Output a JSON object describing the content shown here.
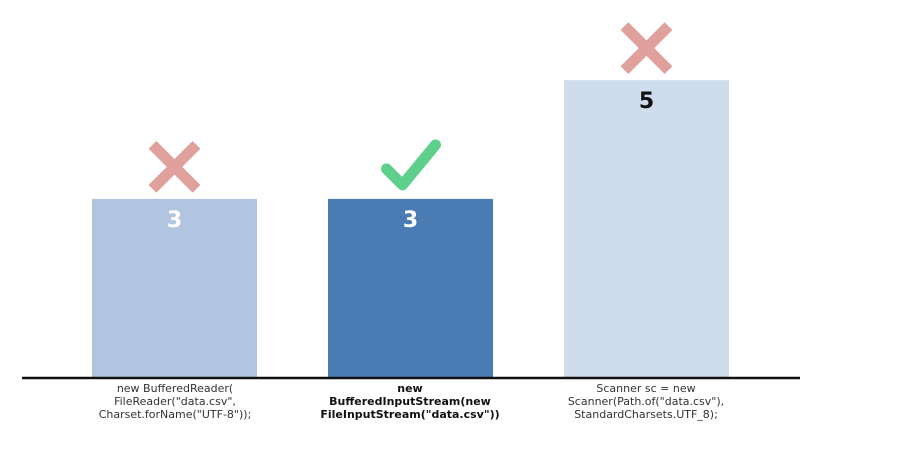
{
  "chart_data": {
    "type": "bar",
    "categories": [
      [
        "new BufferedReader(",
        "FileReader(\"data.csv\",",
        "Charset.forName(\"UTF-8\"));"
      ],
      [
        "new",
        "BufferedInputStream(new",
        "FileInputStream(\"data.csv\"))"
      ],
      [
        "Scanner sc = new",
        "Scanner(Path.of(\"data.csv\"),",
        "StandardCharsets.UTF_8);"
      ]
    ],
    "values": [
      3,
      3,
      5
    ],
    "value_labels": [
      "3",
      "3",
      "5"
    ],
    "marks": [
      "cross",
      "check",
      "cross"
    ],
    "ylim": [
      0,
      6.35
    ],
    "title": "",
    "xlabel": "",
    "ylabel": ""
  },
  "colors": {
    "bars": [
      "#b1c5e1",
      "#4a7bb3",
      "#cfdcec"
    ],
    "value_labels": [
      "#ffffff",
      "#ffffff",
      "#111111"
    ],
    "cross": "#e0a09c",
    "check": "#5fd08b",
    "axis": "#111111"
  },
  "icons": [
    "cross-icon",
    "check-icon",
    "cross-icon"
  ]
}
